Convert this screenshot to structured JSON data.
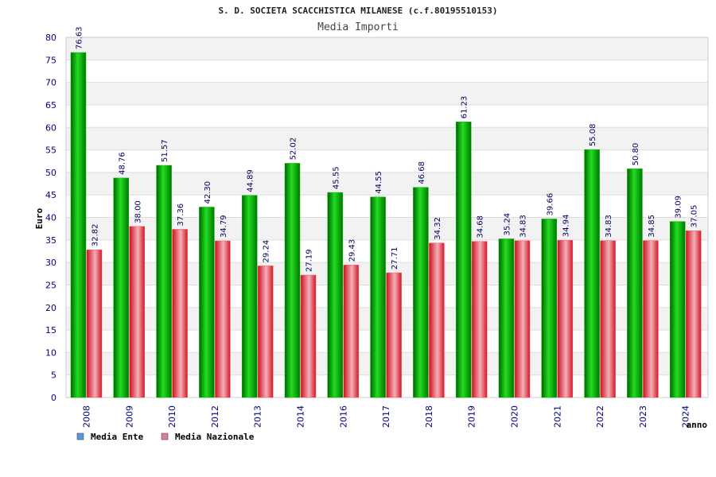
{
  "chart_data": {
    "type": "bar",
    "title": "S. D. SOCIETA SCACCHISTICA MILANESE (c.f.80195510153)",
    "subtitle": "Media Importi",
    "xlabel": "anno",
    "ylabel": "Euro",
    "ylim": [
      0,
      80
    ],
    "ytick_step": 5,
    "grid": true,
    "legend_placement": "bottom-left",
    "categories": [
      "2008",
      "2009",
      "2010",
      "2012",
      "2013",
      "2014",
      "2016",
      "2017",
      "2018",
      "2019",
      "2020",
      "2021",
      "2022",
      "2023",
      "2024"
    ],
    "series": [
      {
        "name": "Media Ente",
        "color": "#00aa00",
        "legend_color": "#5b9bd5",
        "values": [
          76.63,
          48.76,
          51.57,
          42.3,
          44.89,
          52.02,
          45.55,
          44.55,
          46.68,
          61.23,
          35.24,
          39.66,
          55.08,
          50.8,
          39.09
        ],
        "labels": [
          "76.63",
          "48.76",
          "51.57",
          "42.30",
          "44.89",
          "52.02",
          "45.55",
          "44.55",
          "46.68",
          "61.23",
          "35.24",
          "39.66",
          "55.08",
          "50.80",
          "39.09"
        ]
      },
      {
        "name": "Media Nazionale",
        "color": "#e8202a",
        "legend_color": "#e07b9b",
        "values": [
          32.82,
          38.0,
          37.36,
          34.79,
          29.24,
          27.19,
          29.43,
          27.71,
          34.32,
          34.68,
          34.83,
          34.94,
          34.83,
          34.85,
          37.05
        ],
        "labels": [
          "32.82",
          "38.00",
          "37.36",
          "34.79",
          "29.24",
          "27.19",
          "29.43",
          "27.71",
          "34.32",
          "34.68",
          "34.83",
          "34.94",
          "34.83",
          "34.85",
          "37.05"
        ]
      }
    ]
  }
}
